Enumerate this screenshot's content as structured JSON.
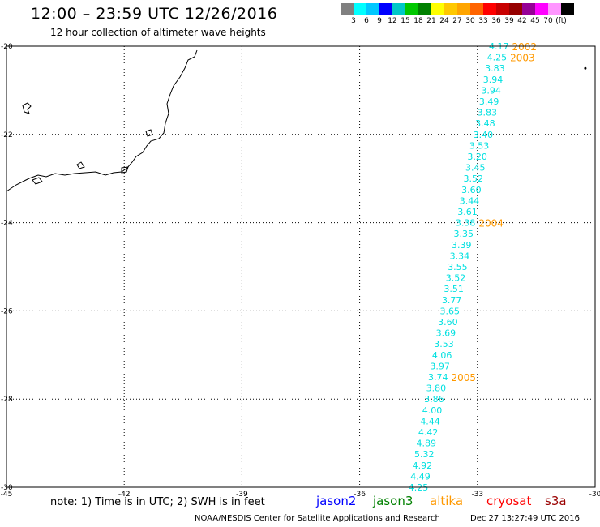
{
  "header": {
    "title": "12:00 – 23:59 UTC 12/26/2016",
    "subtitle": "12 hour collection of altimeter wave heights"
  },
  "colorbar": {
    "colors": [
      "#808080",
      "#00ffff",
      "#00c8ff",
      "#0000ff",
      "#00c8c8",
      "#00c800",
      "#008000",
      "#ffff00",
      "#ffc800",
      "#ffa500",
      "#ff6400",
      "#ff0000",
      "#c80000",
      "#960000",
      "#960096",
      "#ff00ff",
      "#ff96ff",
      "#000000"
    ],
    "labels": [
      "3",
      "6",
      "9",
      "12",
      "15",
      "18",
      "21",
      "24",
      "27",
      "30",
      "33",
      "36",
      "39",
      "42",
      "45",
      "70",
      "(ft)"
    ]
  },
  "map": {
    "lon_range": [
      -45,
      -30
    ],
    "lat_range": [
      -30,
      -20
    ],
    "lon_ticks": [
      "-45",
      "-42",
      "-39",
      "-36",
      "-33",
      "-30"
    ],
    "lat_ticks": [
      "-20",
      "-22",
      "-24",
      "-26",
      "-28",
      "-30"
    ],
    "grid": "dotted",
    "track_color": "#00e0e0",
    "time_label_color": "#ff9900",
    "coastline_color": "#000000",
    "track": [
      {
        "lon": -32.2,
        "lat": -20.0,
        "swh": "4.17"
      },
      {
        "lon": -32.25,
        "lat": -20.25,
        "swh": "4.25"
      },
      {
        "lon": -32.3,
        "lat": -20.5,
        "swh": "3.83"
      },
      {
        "lon": -32.35,
        "lat": -20.75,
        "swh": "3.94"
      },
      {
        "lon": -32.4,
        "lat": -21.0,
        "swh": "3.94"
      },
      {
        "lon": -32.45,
        "lat": -21.25,
        "swh": "3.49"
      },
      {
        "lon": -32.5,
        "lat": -21.5,
        "swh": "3.83"
      },
      {
        "lon": -32.55,
        "lat": -21.75,
        "swh": "3.48"
      },
      {
        "lon": -32.6,
        "lat": -22.0,
        "swh": "3.40"
      },
      {
        "lon": -32.7,
        "lat": -22.25,
        "swh": "3.53"
      },
      {
        "lon": -32.75,
        "lat": -22.5,
        "swh": "3.20"
      },
      {
        "lon": -32.8,
        "lat": -22.75,
        "swh": "3.45"
      },
      {
        "lon": -32.85,
        "lat": -23.0,
        "swh": "3.52"
      },
      {
        "lon": -32.9,
        "lat": -23.25,
        "swh": "3.60"
      },
      {
        "lon": -32.95,
        "lat": -23.5,
        "swh": "3.44"
      },
      {
        "lon": -33.0,
        "lat": -23.75,
        "swh": "3.61"
      },
      {
        "lon": -33.05,
        "lat": -24.0,
        "swh": "3.38"
      },
      {
        "lon": -33.1,
        "lat": -24.25,
        "swh": "3.35"
      },
      {
        "lon": -33.15,
        "lat": -24.5,
        "swh": "3.39"
      },
      {
        "lon": -33.2,
        "lat": -24.75,
        "swh": "3.34"
      },
      {
        "lon": -33.25,
        "lat": -25.0,
        "swh": "3.55"
      },
      {
        "lon": -33.3,
        "lat": -25.25,
        "swh": "3.52"
      },
      {
        "lon": -33.35,
        "lat": -25.5,
        "swh": "3.51"
      },
      {
        "lon": -33.4,
        "lat": -25.75,
        "swh": "3.77"
      },
      {
        "lon": -33.45,
        "lat": -26.0,
        "swh": "3.65"
      },
      {
        "lon": -33.5,
        "lat": -26.25,
        "swh": "3.60"
      },
      {
        "lon": -33.55,
        "lat": -26.5,
        "swh": "3.69"
      },
      {
        "lon": -33.6,
        "lat": -26.75,
        "swh": "3.53"
      },
      {
        "lon": -33.65,
        "lat": -27.0,
        "swh": "4.06"
      },
      {
        "lon": -33.7,
        "lat": -27.25,
        "swh": "3.97"
      },
      {
        "lon": -33.75,
        "lat": -27.5,
        "swh": "3.74"
      },
      {
        "lon": -33.8,
        "lat": -27.75,
        "swh": "3.80"
      },
      {
        "lon": -33.85,
        "lat": -28.0,
        "swh": "3.86"
      },
      {
        "lon": -33.9,
        "lat": -28.25,
        "swh": "4.00"
      },
      {
        "lon": -33.95,
        "lat": -28.5,
        "swh": "4.44"
      },
      {
        "lon": -34.0,
        "lat": -28.75,
        "swh": "4.42"
      },
      {
        "lon": -34.05,
        "lat": -29.0,
        "swh": "4.89"
      },
      {
        "lon": -34.1,
        "lat": -29.25,
        "swh": "5.32"
      },
      {
        "lon": -34.15,
        "lat": -29.5,
        "swh": "4.92"
      },
      {
        "lon": -34.2,
        "lat": -29.75,
        "swh": "4.49"
      },
      {
        "lon": -34.25,
        "lat": -30.0,
        "swh": "4.25"
      }
    ],
    "time_labels": [
      {
        "lon": -32.2,
        "lat": -20.0,
        "label": "2002"
      },
      {
        "lon": -32.25,
        "lat": -20.25,
        "label": "2003"
      },
      {
        "lon": -33.05,
        "lat": -24.0,
        "label": "2004"
      },
      {
        "lon": -33.75,
        "lat": -27.5,
        "label": "2005"
      }
    ],
    "extra_point": {
      "lon": -30.25,
      "lat": -20.5
    }
  },
  "footer": {
    "note": "note: 1) Time is in UTC; 2) SWH is in feet",
    "satellites": [
      {
        "name": "jason2",
        "color": "#0000ff"
      },
      {
        "name": "jason3",
        "color": "#008000"
      },
      {
        "name": "altika",
        "color": "#ff9900"
      },
      {
        "name": "cryosat",
        "color": "#ff0000"
      },
      {
        "name": "s3a",
        "color": "#990000"
      }
    ],
    "credit": "NOAA/NESDIS Center for Satellite Applications and Research",
    "timestamp": "Dec 27 13:27:49 UTC 2016"
  }
}
